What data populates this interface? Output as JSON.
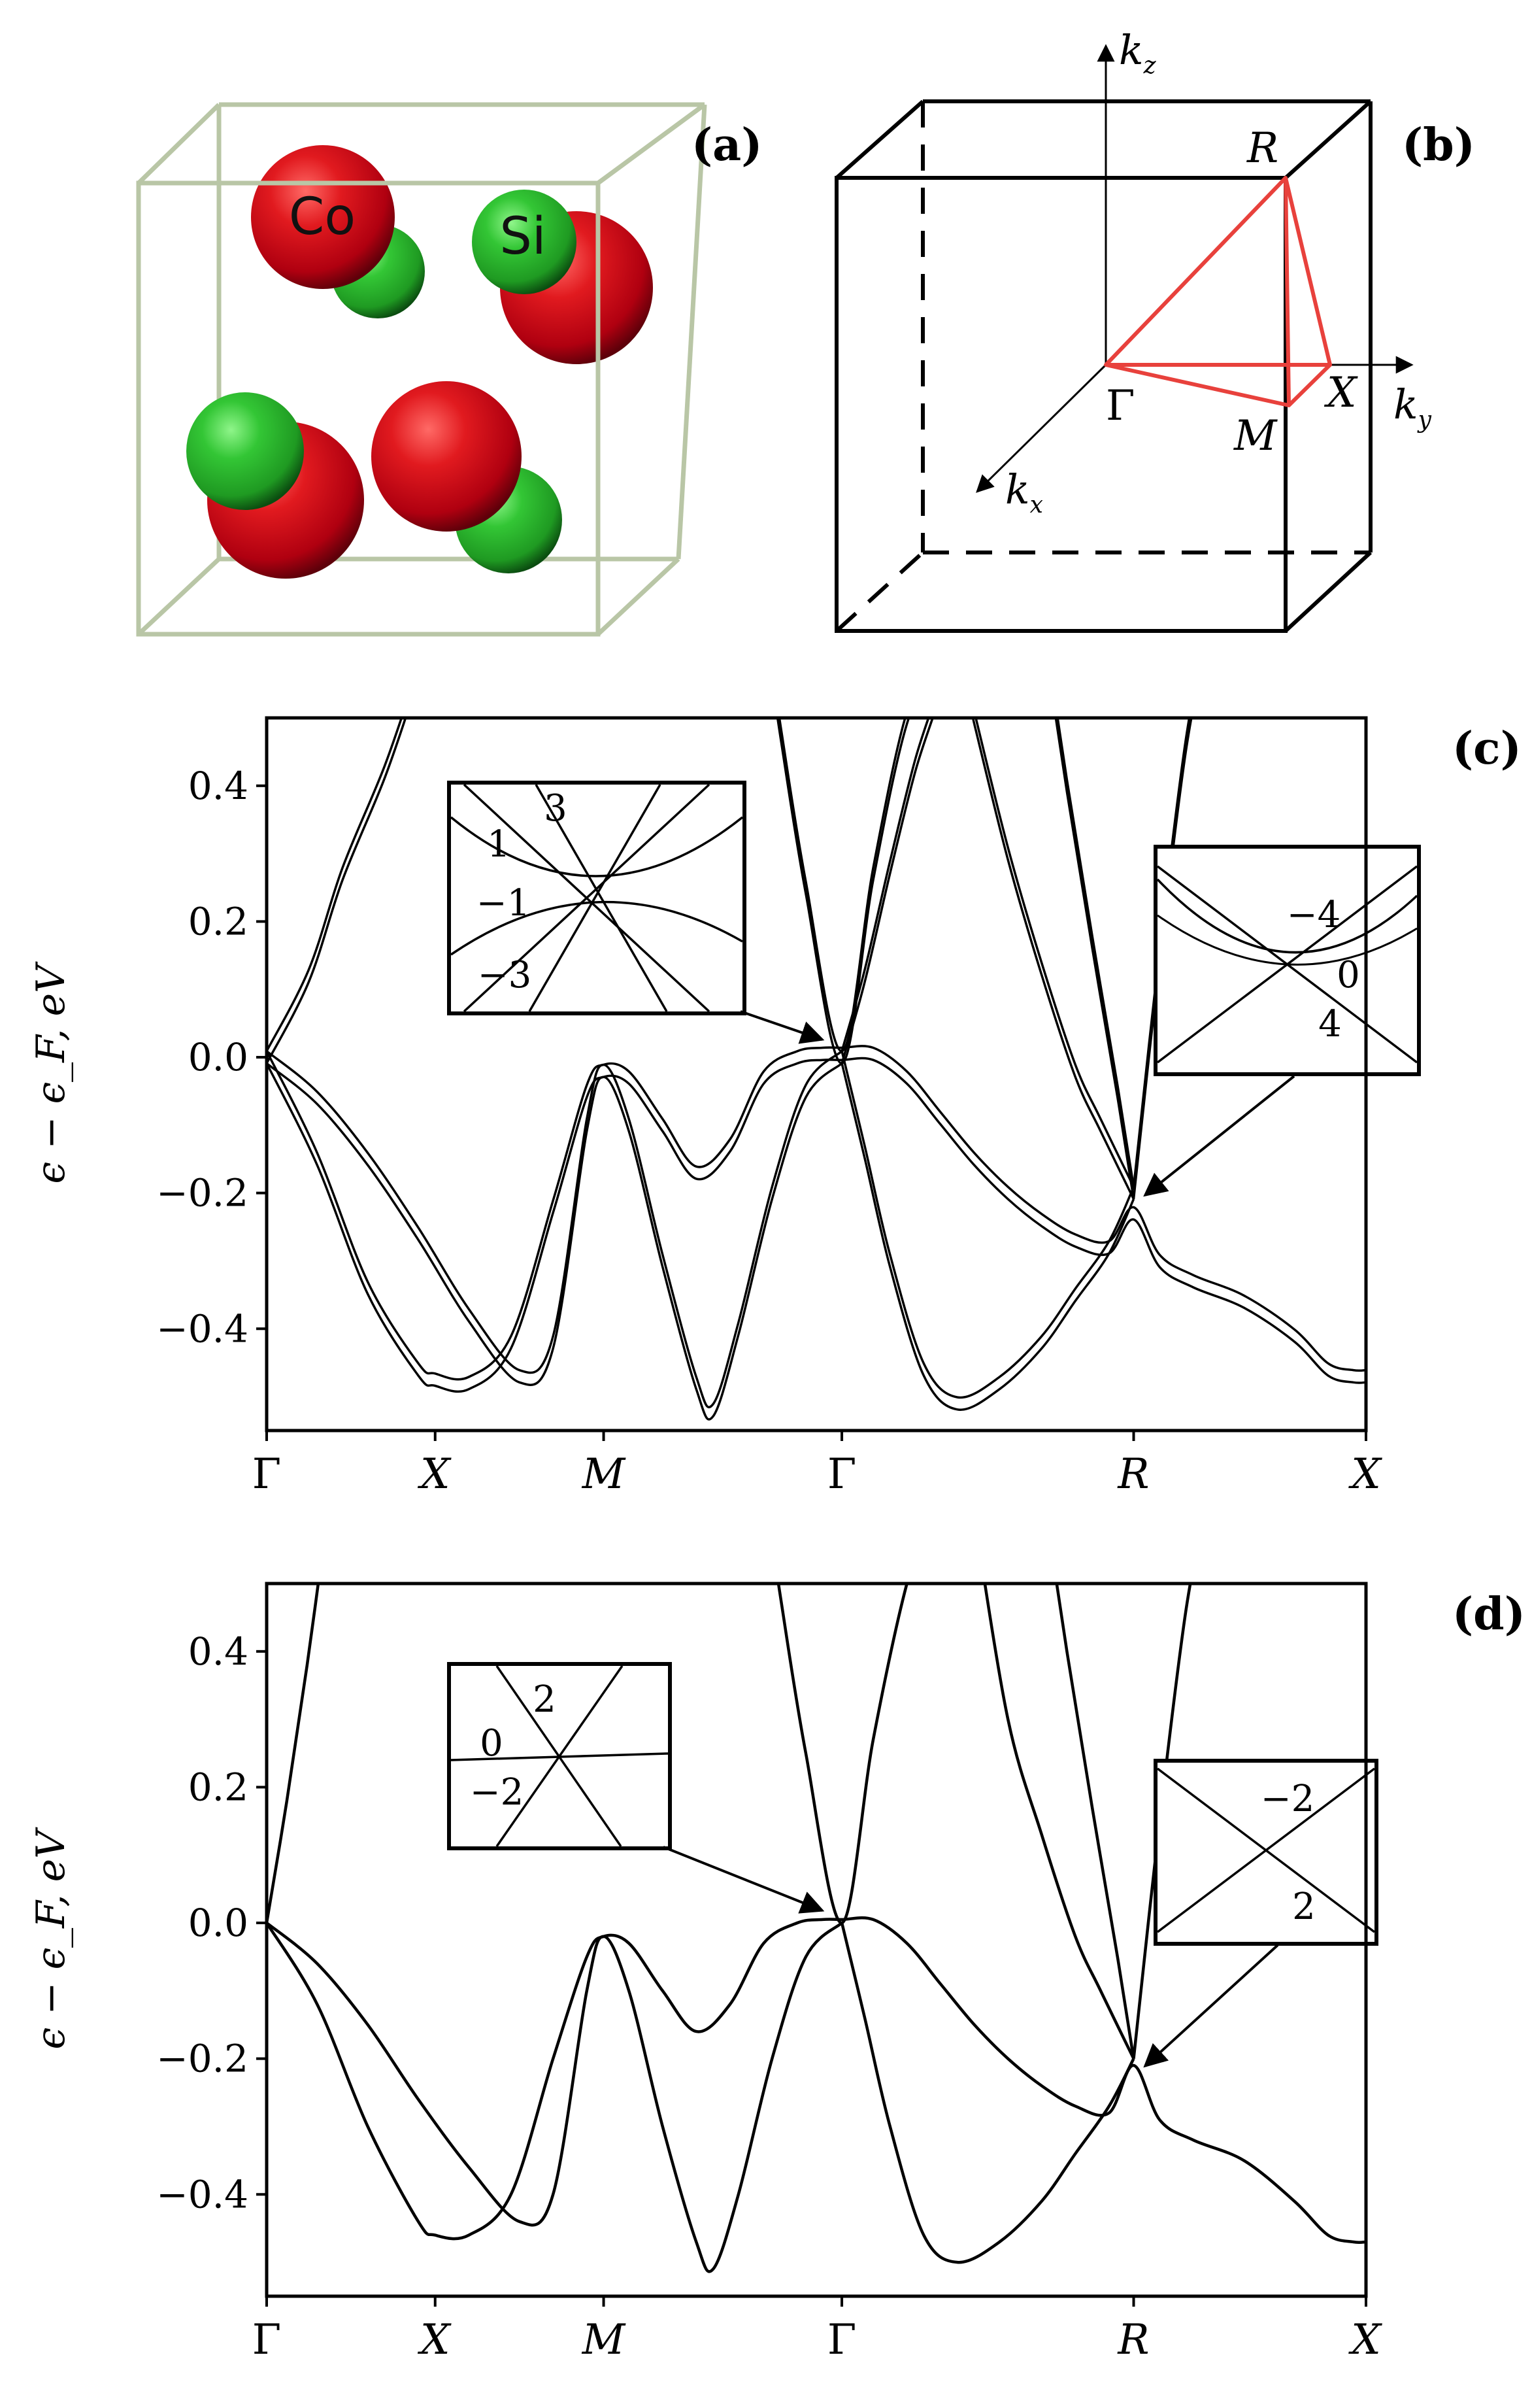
{
  "panels": {
    "a": {
      "label": "(a)",
      "atoms": [
        {
          "species": "Co",
          "label": "Co"
        },
        {
          "species": "Si",
          "label": "Si"
        }
      ],
      "colors": {
        "co": "#d4101e",
        "si": "#2fb52f",
        "cell": "#b9c6a6"
      }
    },
    "b": {
      "label": "(b)",
      "points": {
        "R": "R",
        "X": "X",
        "M": "M",
        "Gamma": "Γ"
      },
      "axes": {
        "kz": "k",
        "kz_sub": "z",
        "ky": "k",
        "ky_sub": "y",
        "kx": "k",
        "kx_sub": "x"
      },
      "path_color": "#e8413c"
    }
  },
  "chart_data": [
    {
      "id": "c",
      "type": "line",
      "panel_label": "(c)",
      "ylabel": "ϵ − ϵ_F, eV",
      "ylim": [
        -0.55,
        0.5
      ],
      "xlim": [
        0,
        6.525
      ],
      "yticks": [
        -0.4,
        -0.2,
        0.0,
        0.2,
        0.4
      ],
      "ytick_labels": [
        "−0.4",
        "−0.2",
        "0.0",
        "0.2",
        "0.4"
      ],
      "xticks": [
        0,
        1,
        2,
        3.414,
        5.146,
        6.525
      ],
      "xtick_labels": [
        "Γ",
        "X",
        "M",
        "Γ",
        "R",
        "X"
      ],
      "split": true,
      "series": [
        {
          "x": [
            0,
            0.25,
            0.45,
            0.7,
            0.88,
            0.98
          ],
          "y": [
            0.0,
            0.12,
            0.27,
            0.42,
            0.55,
            0.62
          ]
        },
        {
          "x": [
            0,
            0.3,
            0.6,
            0.9,
            1.0,
            1.2,
            1.45,
            1.7,
            1.9,
            2.0,
            2.15,
            2.35,
            2.55,
            2.75,
            2.95,
            3.15,
            3.3,
            3.414,
            3.6,
            3.8,
            4.0,
            4.2,
            4.4,
            4.6,
            4.8,
            5.0,
            5.146,
            5.3,
            5.5,
            5.8,
            6.1,
            6.3,
            6.45,
            6.525
          ],
          "y": [
            0.0,
            -0.15,
            -0.34,
            -0.46,
            -0.475,
            -0.48,
            -0.42,
            -0.22,
            -0.05,
            -0.02,
            -0.03,
            -0.1,
            -0.17,
            -0.13,
            -0.03,
            0.0,
            0.005,
            0.005,
            0.005,
            -0.03,
            -0.09,
            -0.15,
            -0.2,
            -0.24,
            -0.27,
            -0.28,
            -0.23,
            -0.3,
            -0.33,
            -0.36,
            -0.41,
            -0.46,
            -0.47,
            -0.47
          ]
        },
        {
          "x": [
            0,
            0.3,
            0.6,
            0.9,
            1.2,
            1.5,
            1.7,
            1.9,
            2.0,
            2.15,
            2.35,
            2.55,
            2.65,
            2.8,
            3.0,
            3.2,
            3.414
          ],
          "y": [
            0.0,
            -0.06,
            -0.15,
            -0.26,
            -0.38,
            -0.47,
            -0.42,
            -0.1,
            -0.02,
            -0.1,
            -0.3,
            -0.48,
            -0.52,
            -0.4,
            -0.2,
            -0.05,
            0.0
          ]
        },
        {
          "x": [
            3.414,
            3.55,
            3.7,
            3.85,
            3.98,
            4.05
          ],
          "y": [
            0.0,
            0.12,
            0.28,
            0.43,
            0.53,
            0.6
          ]
        },
        {
          "x": [
            3.414,
            3.55,
            3.7,
            3.9,
            4.1,
            4.35,
            4.6,
            4.8,
            5.0,
            5.146
          ],
          "y": [
            0.0,
            -0.14,
            -0.3,
            -0.46,
            -0.51,
            -0.48,
            -0.42,
            -0.35,
            -0.28,
            -0.2
          ]
        },
        {
          "x": [
            2.95,
            3.05,
            3.2,
            3.414,
            3.6,
            3.8,
            4.0,
            4.1,
            4.2
          ],
          "y": [
            0.65,
            0.48,
            0.25,
            0.0,
            0.27,
            0.5,
            0.6,
            0.6,
            0.5
          ]
        },
        {
          "x": [
            4.2,
            4.4,
            4.6,
            4.8,
            4.95,
            5.146
          ],
          "y": [
            0.5,
            0.3,
            0.13,
            -0.02,
            -0.1,
            -0.2
          ]
        },
        {
          "x": [
            4.6,
            4.75,
            4.9,
            5.05,
            5.146
          ],
          "y": [
            0.65,
            0.4,
            0.17,
            -0.05,
            -0.2
          ]
        },
        {
          "x": [
            5.146,
            5.3,
            5.45,
            5.56
          ],
          "y": [
            -0.2,
            0.15,
            0.45,
            0.6
          ]
        }
      ],
      "insets": [
        {
          "labels": [
            "3",
            "1",
            "−1",
            "−3"
          ]
        },
        {
          "labels": [
            "−4",
            "0",
            "4"
          ]
        }
      ]
    },
    {
      "id": "d",
      "type": "line",
      "panel_label": "(d)",
      "ylabel": "ϵ − ϵ_F, eV",
      "ylim": [
        -0.55,
        0.5
      ],
      "xlim": [
        0,
        6.525
      ],
      "yticks": [
        -0.4,
        -0.2,
        0.0,
        0.2,
        0.4
      ],
      "ytick_labels": [
        "−0.4",
        "−0.2",
        "0.0",
        "0.2",
        "0.4"
      ],
      "xticks": [
        0,
        1,
        2,
        3.414,
        5.146,
        6.525
      ],
      "xtick_labels": [
        "Γ",
        "X",
        "M",
        "Γ",
        "R",
        "X"
      ],
      "split": false,
      "series": [
        {
          "x": [
            0,
            0.12,
            0.24,
            0.36
          ],
          "y": [
            0.0,
            0.18,
            0.38,
            0.6
          ]
        },
        {
          "x": [
            0,
            0.3,
            0.6,
            0.9,
            1.0,
            1.2,
            1.45,
            1.7,
            1.9,
            2.0,
            2.15,
            2.35,
            2.55,
            2.75,
            2.95,
            3.15,
            3.3,
            3.414,
            3.6,
            3.8,
            4.0,
            4.2,
            4.4,
            4.6,
            4.8,
            5.0,
            5.146,
            5.3,
            5.5,
            5.8,
            6.1,
            6.3,
            6.45,
            6.525
          ],
          "y": [
            0.0,
            -0.12,
            -0.3,
            -0.44,
            -0.46,
            -0.46,
            -0.4,
            -0.2,
            -0.05,
            -0.02,
            -0.03,
            -0.1,
            -0.16,
            -0.12,
            -0.03,
            0.0,
            0.005,
            0.005,
            0.005,
            -0.03,
            -0.09,
            -0.15,
            -0.2,
            -0.24,
            -0.27,
            -0.28,
            -0.21,
            -0.29,
            -0.32,
            -0.35,
            -0.41,
            -0.46,
            -0.47,
            -0.47
          ]
        },
        {
          "x": [
            0,
            0.3,
            0.6,
            0.9,
            1.2,
            1.5,
            1.7,
            1.9,
            2.0,
            2.15,
            2.35,
            2.55,
            2.65,
            2.8,
            3.0,
            3.2,
            3.414
          ],
          "y": [
            0.0,
            -0.06,
            -0.15,
            -0.26,
            -0.36,
            -0.44,
            -0.4,
            -0.1,
            -0.02,
            -0.1,
            -0.3,
            -0.47,
            -0.51,
            -0.4,
            -0.2,
            -0.05,
            0.0
          ]
        },
        {
          "x": [
            3.414,
            3.55,
            3.7,
            3.9,
            4.1,
            4.35,
            4.6,
            4.8,
            5.0,
            5.146
          ],
          "y": [
            0.0,
            -0.14,
            -0.3,
            -0.46,
            -0.5,
            -0.47,
            -0.41,
            -0.34,
            -0.27,
            -0.2
          ]
        },
        {
          "x": [
            2.95,
            3.05,
            3.2,
            3.414,
            3.6,
            3.8,
            3.95
          ],
          "y": [
            0.65,
            0.48,
            0.25,
            0.0,
            0.27,
            0.5,
            0.6
          ]
        },
        {
          "x": [
            4.2,
            4.4,
            4.6,
            4.8,
            4.95,
            5.146
          ],
          "y": [
            0.6,
            0.3,
            0.13,
            -0.02,
            -0.1,
            -0.2
          ]
        },
        {
          "x": [
            4.6,
            4.75,
            4.9,
            5.05,
            5.146
          ],
          "y": [
            0.65,
            0.4,
            0.17,
            -0.05,
            -0.2
          ]
        },
        {
          "x": [
            5.146,
            5.3,
            5.45,
            5.56
          ],
          "y": [
            -0.2,
            0.15,
            0.45,
            0.6
          ]
        }
      ],
      "insets": [
        {
          "labels": [
            "2",
            "0",
            "−2"
          ]
        },
        {
          "labels": [
            "−2",
            "2"
          ]
        }
      ]
    }
  ]
}
